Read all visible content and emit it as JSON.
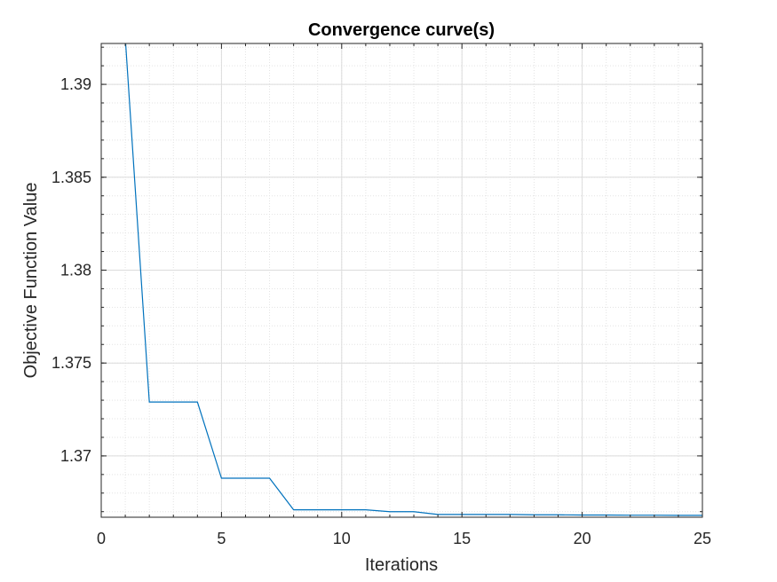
{
  "chart_data": {
    "type": "line",
    "title": "Convergence curve(s)",
    "xlabel": "Iterations",
    "ylabel": "Objective Function Value",
    "xlim": [
      0,
      25
    ],
    "ylim": [
      1.3667,
      1.3922
    ],
    "xticks": [
      0,
      5,
      10,
      15,
      20,
      25
    ],
    "yticks": [
      1.37,
      1.375,
      1.38,
      1.385,
      1.39
    ],
    "ytick_labels": [
      "1.37",
      "1.375",
      "1.38",
      "1.385",
      "1.39"
    ],
    "grid": true,
    "minor_grid": true,
    "series": [
      {
        "color": "#0072BD",
        "x": [
          1,
          2,
          3,
          4,
          5,
          6,
          7,
          8,
          9,
          10,
          11,
          12,
          13,
          14,
          15,
          16,
          17,
          18,
          19,
          20,
          21,
          22,
          23,
          24,
          25
        ],
        "y": [
          1.3925,
          1.3729,
          1.3729,
          1.3729,
          1.3688,
          1.3688,
          1.3688,
          1.3671,
          1.3671,
          1.3671,
          1.3671,
          1.367,
          1.367,
          1.36685,
          1.36685,
          1.36685,
          1.36685,
          1.36683,
          1.36683,
          1.36682,
          1.36682,
          1.36681,
          1.36681,
          1.3668,
          1.3668
        ]
      }
    ]
  }
}
